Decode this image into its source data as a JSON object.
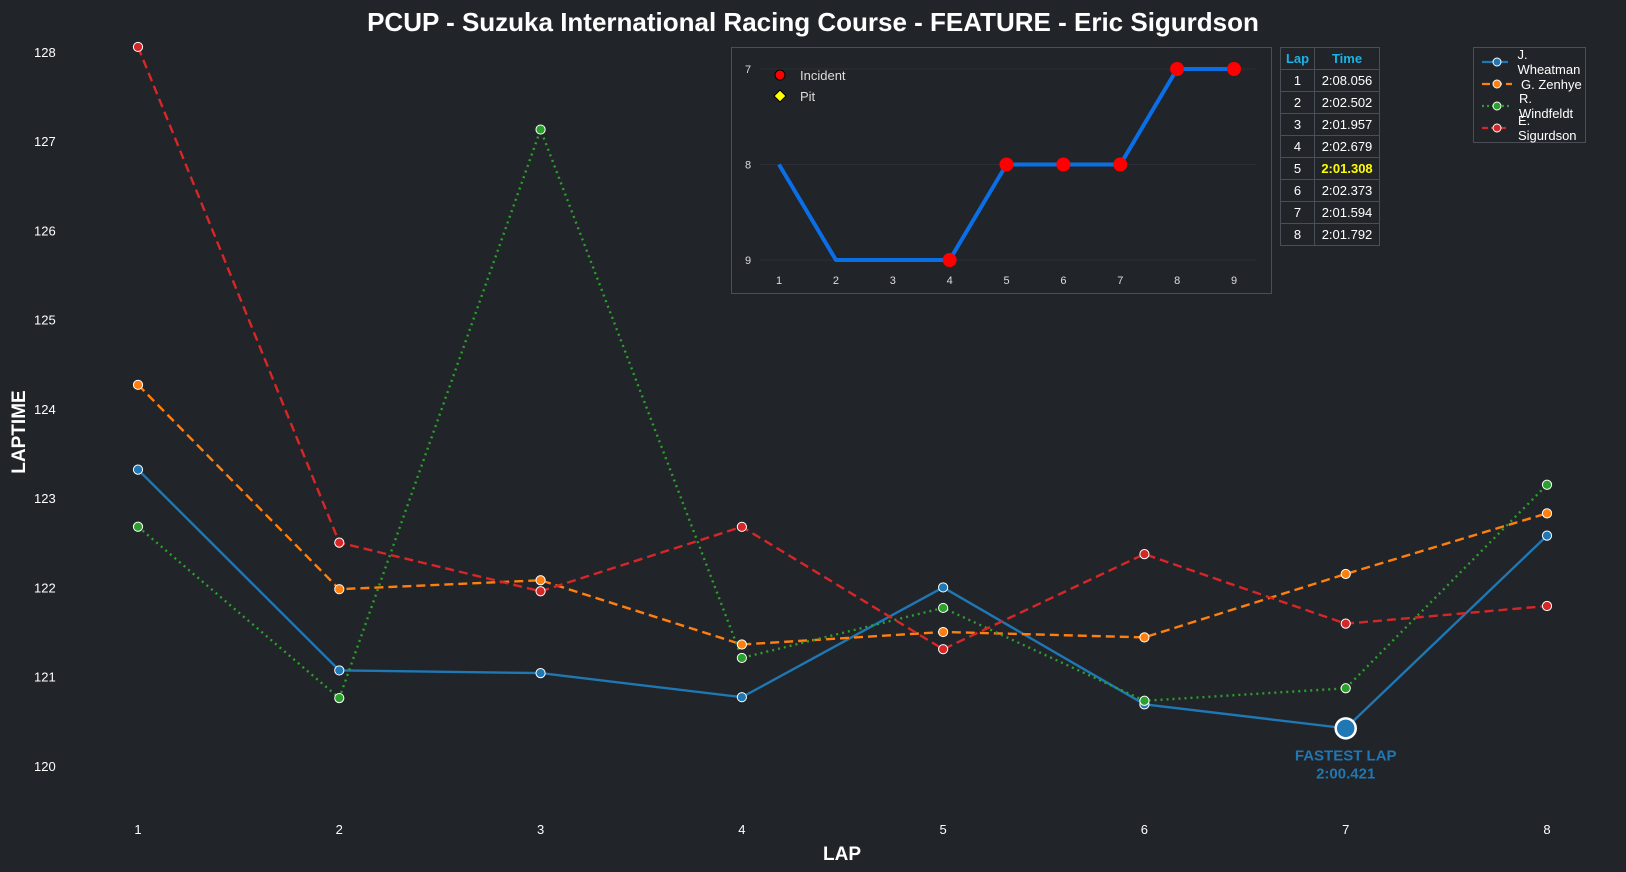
{
  "chart_data": [
    {
      "type": "line",
      "title": "PCUP - Suzuka International Racing Course - FEATURE - Eric Sigurdson",
      "xlabel": "LAP",
      "ylabel": "LAPTIME",
      "x": [
        1,
        2,
        3,
        4,
        5,
        6,
        7,
        8
      ],
      "yticks": [
        120,
        121,
        122,
        123,
        124,
        125,
        126,
        127,
        128
      ],
      "ylim": [
        119.45,
        128.1
      ],
      "grid": false,
      "legend_position": "top-right",
      "series": [
        {
          "name": "J. Wheatman",
          "color": "#1f77b4",
          "style": "solid",
          "values": [
            123.32,
            121.07,
            121.04,
            120.77,
            122.0,
            120.69,
            120.421,
            122.58
          ]
        },
        {
          "name": "G. Zenhye",
          "color": "#ff7f0e",
          "style": "dashed",
          "values": [
            124.27,
            121.98,
            122.08,
            121.36,
            121.5,
            121.44,
            122.15,
            122.83
          ]
        },
        {
          "name": "R. Windfeldt",
          "color": "#2ca02c",
          "style": "dotted",
          "values": [
            122.68,
            120.76,
            127.13,
            121.21,
            121.77,
            120.73,
            120.87,
            123.15
          ]
        },
        {
          "name": "E. Sigurdson",
          "color": "#d62728",
          "style": "dashed",
          "values": [
            128.056,
            122.502,
            121.957,
            122.679,
            121.308,
            122.373,
            121.594,
            121.792
          ]
        }
      ],
      "annotation": {
        "label": "FASTEST LAP",
        "value": "2:00.421",
        "x": 7,
        "y": 120.421,
        "color": "#1f77b4"
      }
    },
    {
      "type": "line",
      "title": "",
      "x": [
        1,
        2,
        3,
        4,
        5,
        6,
        7,
        8,
        9
      ],
      "values": [
        8,
        9,
        9,
        9,
        8,
        8,
        8,
        7,
        7
      ],
      "y_inverted": true,
      "yticks": [
        7,
        8,
        9
      ],
      "line_color": "#0a6fe6",
      "incident_laps": [
        4,
        5,
        6,
        7,
        8,
        9
      ],
      "pit_laps": [],
      "legend": [
        {
          "label": "Incident",
          "marker": "red-circle"
        },
        {
          "label": "Pit",
          "marker": "yellow-diamond"
        }
      ]
    }
  ],
  "lap_table": {
    "headers": [
      "Lap",
      "Time"
    ],
    "rows": [
      {
        "lap": "1",
        "time": "2:08.056"
      },
      {
        "lap": "2",
        "time": "2:02.502"
      },
      {
        "lap": "3",
        "time": "2:01.957"
      },
      {
        "lap": "4",
        "time": "2:02.679"
      },
      {
        "lap": "5",
        "time": "2:01.308"
      },
      {
        "lap": "6",
        "time": "2:02.373"
      },
      {
        "lap": "7",
        "time": "2:01.594"
      },
      {
        "lap": "8",
        "time": "2:01.792"
      }
    ],
    "best_lap": "5",
    "best_color": "#ffff00",
    "header_color": "#18b4e8"
  }
}
